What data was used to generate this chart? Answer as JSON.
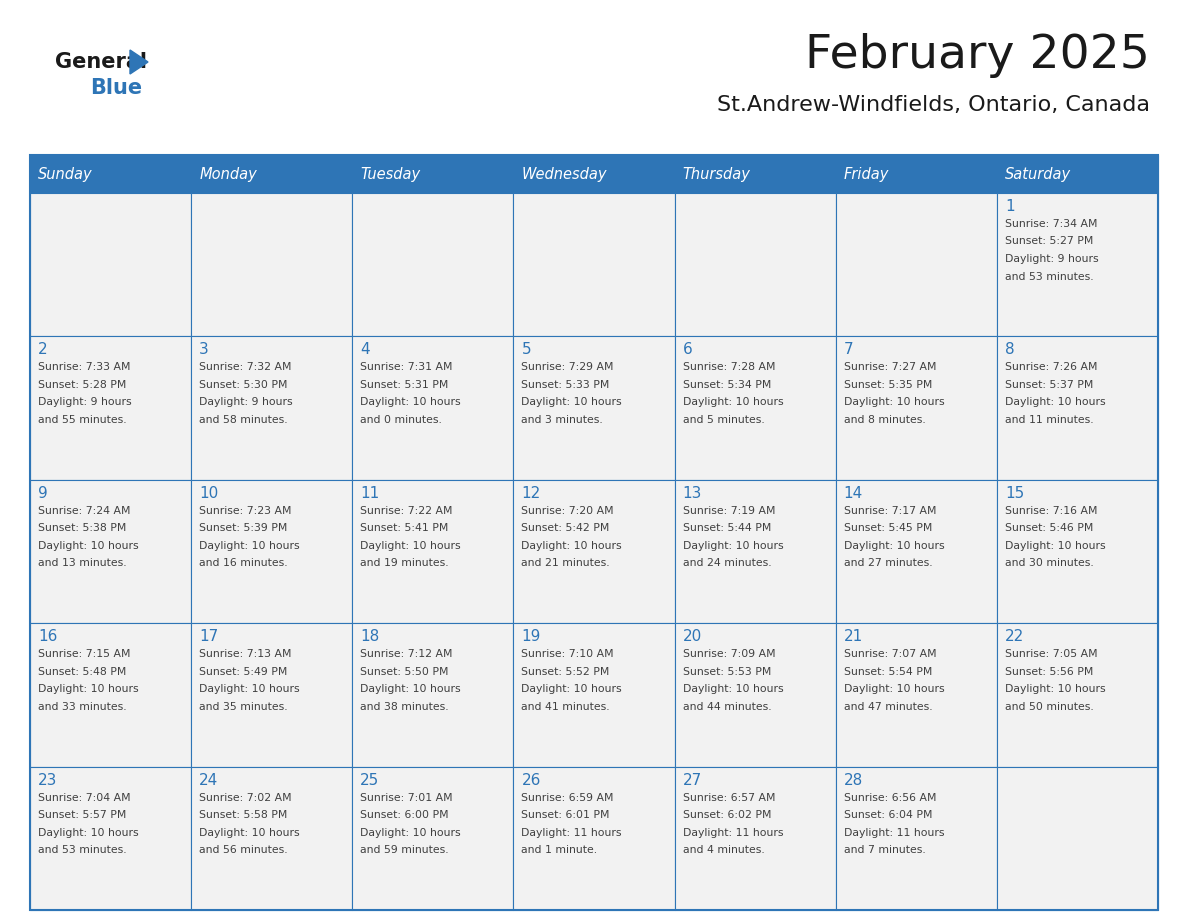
{
  "title": "February 2025",
  "subtitle": "St.Andrew-Windfields, Ontario, Canada",
  "days_of_week": [
    "Sunday",
    "Monday",
    "Tuesday",
    "Wednesday",
    "Thursday",
    "Friday",
    "Saturday"
  ],
  "header_bg": "#2E75B6",
  "header_text": "#FFFFFF",
  "cell_bg": "#F2F2F2",
  "border_color": "#2E75B6",
  "day_num_color": "#2E75B6",
  "info_color": "#404040",
  "title_color": "#1a1a1a",
  "subtitle_color": "#1a1a1a",
  "logo_general_color": "#1a1a1a",
  "logo_blue_color": "#2E75B6",
  "calendar_data": [
    [
      {
        "day": null,
        "info": ""
      },
      {
        "day": null,
        "info": ""
      },
      {
        "day": null,
        "info": ""
      },
      {
        "day": null,
        "info": ""
      },
      {
        "day": null,
        "info": ""
      },
      {
        "day": null,
        "info": ""
      },
      {
        "day": 1,
        "info": "Sunrise: 7:34 AM\nSunset: 5:27 PM\nDaylight: 9 hours\nand 53 minutes."
      }
    ],
    [
      {
        "day": 2,
        "info": "Sunrise: 7:33 AM\nSunset: 5:28 PM\nDaylight: 9 hours\nand 55 minutes."
      },
      {
        "day": 3,
        "info": "Sunrise: 7:32 AM\nSunset: 5:30 PM\nDaylight: 9 hours\nand 58 minutes."
      },
      {
        "day": 4,
        "info": "Sunrise: 7:31 AM\nSunset: 5:31 PM\nDaylight: 10 hours\nand 0 minutes."
      },
      {
        "day": 5,
        "info": "Sunrise: 7:29 AM\nSunset: 5:33 PM\nDaylight: 10 hours\nand 3 minutes."
      },
      {
        "day": 6,
        "info": "Sunrise: 7:28 AM\nSunset: 5:34 PM\nDaylight: 10 hours\nand 5 minutes."
      },
      {
        "day": 7,
        "info": "Sunrise: 7:27 AM\nSunset: 5:35 PM\nDaylight: 10 hours\nand 8 minutes."
      },
      {
        "day": 8,
        "info": "Sunrise: 7:26 AM\nSunset: 5:37 PM\nDaylight: 10 hours\nand 11 minutes."
      }
    ],
    [
      {
        "day": 9,
        "info": "Sunrise: 7:24 AM\nSunset: 5:38 PM\nDaylight: 10 hours\nand 13 minutes."
      },
      {
        "day": 10,
        "info": "Sunrise: 7:23 AM\nSunset: 5:39 PM\nDaylight: 10 hours\nand 16 minutes."
      },
      {
        "day": 11,
        "info": "Sunrise: 7:22 AM\nSunset: 5:41 PM\nDaylight: 10 hours\nand 19 minutes."
      },
      {
        "day": 12,
        "info": "Sunrise: 7:20 AM\nSunset: 5:42 PM\nDaylight: 10 hours\nand 21 minutes."
      },
      {
        "day": 13,
        "info": "Sunrise: 7:19 AM\nSunset: 5:44 PM\nDaylight: 10 hours\nand 24 minutes."
      },
      {
        "day": 14,
        "info": "Sunrise: 7:17 AM\nSunset: 5:45 PM\nDaylight: 10 hours\nand 27 minutes."
      },
      {
        "day": 15,
        "info": "Sunrise: 7:16 AM\nSunset: 5:46 PM\nDaylight: 10 hours\nand 30 minutes."
      }
    ],
    [
      {
        "day": 16,
        "info": "Sunrise: 7:15 AM\nSunset: 5:48 PM\nDaylight: 10 hours\nand 33 minutes."
      },
      {
        "day": 17,
        "info": "Sunrise: 7:13 AM\nSunset: 5:49 PM\nDaylight: 10 hours\nand 35 minutes."
      },
      {
        "day": 18,
        "info": "Sunrise: 7:12 AM\nSunset: 5:50 PM\nDaylight: 10 hours\nand 38 minutes."
      },
      {
        "day": 19,
        "info": "Sunrise: 7:10 AM\nSunset: 5:52 PM\nDaylight: 10 hours\nand 41 minutes."
      },
      {
        "day": 20,
        "info": "Sunrise: 7:09 AM\nSunset: 5:53 PM\nDaylight: 10 hours\nand 44 minutes."
      },
      {
        "day": 21,
        "info": "Sunrise: 7:07 AM\nSunset: 5:54 PM\nDaylight: 10 hours\nand 47 minutes."
      },
      {
        "day": 22,
        "info": "Sunrise: 7:05 AM\nSunset: 5:56 PM\nDaylight: 10 hours\nand 50 minutes."
      }
    ],
    [
      {
        "day": 23,
        "info": "Sunrise: 7:04 AM\nSunset: 5:57 PM\nDaylight: 10 hours\nand 53 minutes."
      },
      {
        "day": 24,
        "info": "Sunrise: 7:02 AM\nSunset: 5:58 PM\nDaylight: 10 hours\nand 56 minutes."
      },
      {
        "day": 25,
        "info": "Sunrise: 7:01 AM\nSunset: 6:00 PM\nDaylight: 10 hours\nand 59 minutes."
      },
      {
        "day": 26,
        "info": "Sunrise: 6:59 AM\nSunset: 6:01 PM\nDaylight: 11 hours\nand 1 minute."
      },
      {
        "day": 27,
        "info": "Sunrise: 6:57 AM\nSunset: 6:02 PM\nDaylight: 11 hours\nand 4 minutes."
      },
      {
        "day": 28,
        "info": "Sunrise: 6:56 AM\nSunset: 6:04 PM\nDaylight: 11 hours\nand 7 minutes."
      },
      {
        "day": null,
        "info": ""
      }
    ]
  ]
}
